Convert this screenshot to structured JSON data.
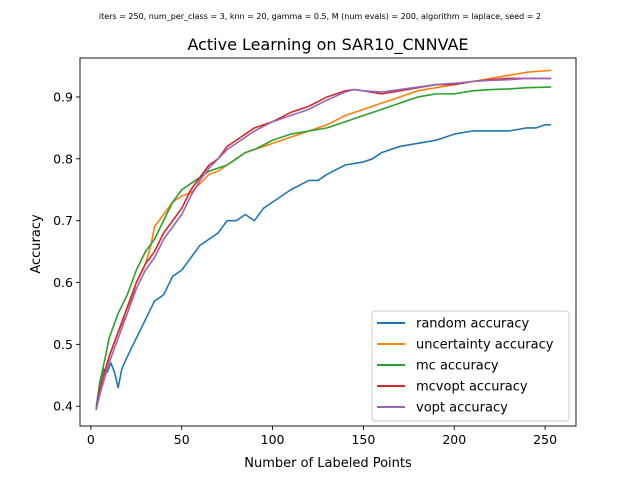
{
  "chart_data": {
    "type": "line",
    "suptitle": "iters = 250, num_per_class = 3, knn = 20, gamma = 0.5, M (num evals) = 200, algorithm = laplace, seed = 2",
    "title": "Active Learning on SAR10_CNNVAE",
    "xlabel": "Number of Labeled Points",
    "ylabel": "Accuracy",
    "xlim": [
      -6,
      267
    ],
    "ylim": [
      0.368,
      0.963
    ],
    "xticks": [
      0,
      50,
      100,
      150,
      200,
      250
    ],
    "yticks": [
      0.4,
      0.5,
      0.6,
      0.7,
      0.8,
      0.9
    ],
    "ytick_labels": [
      "0.4",
      "0.5",
      "0.6",
      "0.7",
      "0.8",
      "0.9"
    ],
    "grid": false,
    "legend_position": "lower-right",
    "series": [
      {
        "name": "random accuracy",
        "color": "#1f77b4",
        "x": [
          3,
          5,
          7,
          9,
          11,
          13,
          15,
          17,
          20,
          25,
          30,
          35,
          40,
          45,
          50,
          55,
          60,
          65,
          70,
          75,
          80,
          85,
          90,
          95,
          100,
          110,
          120,
          125,
          130,
          140,
          150,
          155,
          160,
          170,
          180,
          190,
          200,
          210,
          220,
          230,
          240,
          245,
          250,
          253
        ],
        "y": [
          0.4,
          0.44,
          0.46,
          0.455,
          0.47,
          0.455,
          0.43,
          0.46,
          0.48,
          0.51,
          0.54,
          0.57,
          0.58,
          0.61,
          0.62,
          0.64,
          0.66,
          0.67,
          0.68,
          0.7,
          0.7,
          0.71,
          0.7,
          0.72,
          0.73,
          0.75,
          0.765,
          0.765,
          0.775,
          0.79,
          0.795,
          0.8,
          0.81,
          0.82,
          0.825,
          0.83,
          0.84,
          0.845,
          0.845,
          0.845,
          0.85,
          0.85,
          0.855,
          0.855
        ]
      },
      {
        "name": "uncertainty accuracy",
        "color": "#ff7f0e",
        "x": [
          3,
          5,
          8,
          10,
          15,
          20,
          25,
          30,
          33,
          35,
          40,
          45,
          50,
          55,
          60,
          65,
          70,
          75,
          80,
          85,
          90,
          95,
          100,
          110,
          120,
          125,
          130,
          140,
          150,
          160,
          170,
          180,
          190,
          200,
          210,
          220,
          230,
          240,
          253
        ],
        "y": [
          0.395,
          0.43,
          0.46,
          0.48,
          0.52,
          0.55,
          0.6,
          0.63,
          0.66,
          0.69,
          0.71,
          0.73,
          0.74,
          0.745,
          0.76,
          0.775,
          0.78,
          0.79,
          0.8,
          0.81,
          0.815,
          0.82,
          0.825,
          0.835,
          0.845,
          0.85,
          0.855,
          0.87,
          0.88,
          0.89,
          0.9,
          0.91,
          0.915,
          0.92,
          0.925,
          0.93,
          0.935,
          0.94,
          0.943
        ]
      },
      {
        "name": "mc accuracy",
        "color": "#2ca02c",
        "x": [
          3,
          5,
          8,
          10,
          15,
          20,
          25,
          30,
          35,
          40,
          45,
          50,
          55,
          60,
          65,
          70,
          75,
          80,
          85,
          90,
          100,
          110,
          120,
          130,
          140,
          150,
          160,
          170,
          180,
          190,
          200,
          210,
          220,
          230,
          240,
          253
        ],
        "y": [
          0.395,
          0.44,
          0.48,
          0.51,
          0.55,
          0.58,
          0.62,
          0.65,
          0.67,
          0.7,
          0.73,
          0.75,
          0.76,
          0.77,
          0.78,
          0.785,
          0.79,
          0.8,
          0.81,
          0.815,
          0.83,
          0.84,
          0.845,
          0.85,
          0.86,
          0.87,
          0.88,
          0.89,
          0.9,
          0.905,
          0.905,
          0.91,
          0.912,
          0.913,
          0.915,
          0.916
        ]
      },
      {
        "name": "mcvopt accuracy",
        "color": "#d62728",
        "x": [
          3,
          5,
          8,
          10,
          15,
          20,
          25,
          30,
          35,
          40,
          45,
          50,
          55,
          60,
          65,
          70,
          75,
          80,
          85,
          90,
          100,
          110,
          120,
          130,
          140,
          145,
          150,
          160,
          170,
          180,
          190,
          200,
          210,
          220,
          230,
          240,
          253
        ],
        "y": [
          0.395,
          0.43,
          0.46,
          0.48,
          0.52,
          0.56,
          0.6,
          0.63,
          0.65,
          0.68,
          0.7,
          0.72,
          0.75,
          0.77,
          0.79,
          0.8,
          0.82,
          0.83,
          0.84,
          0.85,
          0.86,
          0.875,
          0.885,
          0.9,
          0.91,
          0.912,
          0.91,
          0.905,
          0.91,
          0.915,
          0.92,
          0.92,
          0.925,
          0.928,
          0.93,
          0.93,
          0.93
        ]
      },
      {
        "name": "vopt accuracy",
        "color": "#9467bd",
        "x": [
          3,
          5,
          8,
          10,
          15,
          20,
          25,
          30,
          35,
          40,
          45,
          50,
          55,
          60,
          65,
          70,
          75,
          80,
          85,
          90,
          100,
          110,
          120,
          130,
          140,
          145,
          150,
          160,
          170,
          180,
          190,
          200,
          210,
          220,
          230,
          240,
          253
        ],
        "y": [
          0.395,
          0.42,
          0.45,
          0.47,
          0.51,
          0.55,
          0.59,
          0.62,
          0.64,
          0.67,
          0.69,
          0.71,
          0.74,
          0.765,
          0.785,
          0.8,
          0.815,
          0.825,
          0.835,
          0.845,
          0.86,
          0.87,
          0.88,
          0.895,
          0.908,
          0.912,
          0.91,
          0.908,
          0.912,
          0.916,
          0.92,
          0.922,
          0.925,
          0.927,
          0.928,
          0.93,
          0.93
        ]
      }
    ]
  }
}
